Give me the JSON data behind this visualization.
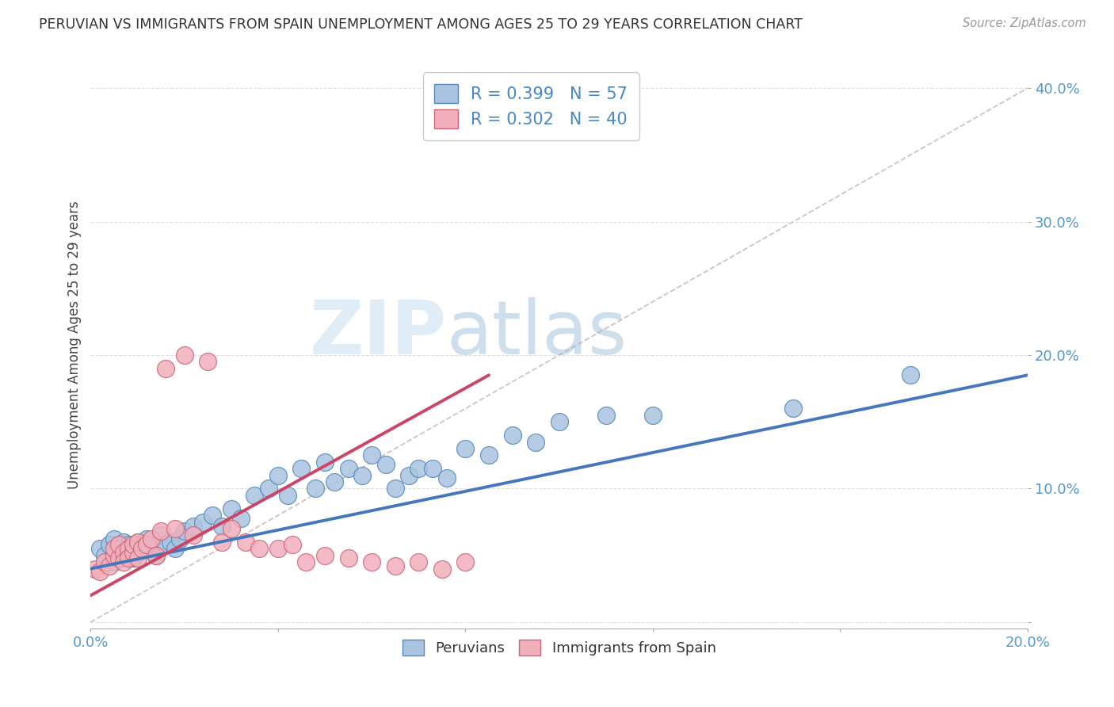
{
  "title": "PERUVIAN VS IMMIGRANTS FROM SPAIN UNEMPLOYMENT AMONG AGES 25 TO 29 YEARS CORRELATION CHART",
  "source_text": "Source: ZipAtlas.com",
  "ylabel": "Unemployment Among Ages 25 to 29 years",
  "xlim": [
    0.0,
    0.2
  ],
  "ylim": [
    -0.005,
    0.42
  ],
  "x_ticks": [
    0.0,
    0.04,
    0.08,
    0.12,
    0.16,
    0.2
  ],
  "y_ticks": [
    0.0,
    0.1,
    0.2,
    0.3,
    0.4
  ],
  "blue_color": "#aac4e0",
  "blue_edge": "#5588bb",
  "pink_color": "#f0b0bc",
  "pink_edge": "#cc6677",
  "trend_blue": "#4477bb",
  "trend_pink": "#cc4466",
  "diag_color": "#ccbbbb",
  "watermark_zip": "ZIP",
  "watermark_atlas": "atlas",
  "bg_color": "#ffffff",
  "grid_color": "#dddddd",
  "peruvians_x": [
    0.002,
    0.003,
    0.004,
    0.005,
    0.005,
    0.006,
    0.006,
    0.007,
    0.007,
    0.008,
    0.008,
    0.009,
    0.009,
    0.01,
    0.01,
    0.011,
    0.012,
    0.013,
    0.014,
    0.015,
    0.016,
    0.017,
    0.018,
    0.019,
    0.02,
    0.022,
    0.024,
    0.026,
    0.028,
    0.03,
    0.032,
    0.035,
    0.038,
    0.04,
    0.042,
    0.045,
    0.048,
    0.05,
    0.052,
    0.055,
    0.058,
    0.06,
    0.063,
    0.065,
    0.068,
    0.07,
    0.073,
    0.076,
    0.08,
    0.085,
    0.09,
    0.095,
    0.1,
    0.11,
    0.12,
    0.15,
    0.175
  ],
  "peruvians_y": [
    0.055,
    0.05,
    0.058,
    0.062,
    0.045,
    0.055,
    0.048,
    0.06,
    0.052,
    0.058,
    0.05,
    0.055,
    0.048,
    0.06,
    0.052,
    0.058,
    0.062,
    0.055,
    0.05,
    0.065,
    0.058,
    0.06,
    0.055,
    0.062,
    0.068,
    0.072,
    0.075,
    0.08,
    0.072,
    0.085,
    0.078,
    0.095,
    0.1,
    0.11,
    0.095,
    0.115,
    0.1,
    0.12,
    0.105,
    0.115,
    0.11,
    0.125,
    0.118,
    0.1,
    0.11,
    0.115,
    0.115,
    0.108,
    0.13,
    0.125,
    0.14,
    0.135,
    0.15,
    0.155,
    0.155,
    0.16,
    0.185
  ],
  "spain_x": [
    0.001,
    0.002,
    0.003,
    0.004,
    0.005,
    0.005,
    0.006,
    0.006,
    0.007,
    0.007,
    0.008,
    0.008,
    0.009,
    0.009,
    0.01,
    0.01,
    0.011,
    0.012,
    0.013,
    0.014,
    0.015,
    0.016,
    0.018,
    0.02,
    0.022,
    0.025,
    0.028,
    0.03,
    0.033,
    0.036,
    0.04,
    0.043,
    0.046,
    0.05,
    0.055,
    0.06,
    0.065,
    0.07,
    0.075,
    0.08
  ],
  "spain_y": [
    0.04,
    0.038,
    0.045,
    0.042,
    0.05,
    0.055,
    0.048,
    0.058,
    0.052,
    0.045,
    0.055,
    0.048,
    0.052,
    0.058,
    0.048,
    0.06,
    0.055,
    0.058,
    0.062,
    0.05,
    0.068,
    0.19,
    0.07,
    0.2,
    0.065,
    0.195,
    0.06,
    0.07,
    0.06,
    0.055,
    0.055,
    0.058,
    0.045,
    0.05,
    0.048,
    0.045,
    0.042,
    0.045,
    0.04,
    0.045
  ],
  "blue_trend_x": [
    0.0,
    0.2
  ],
  "blue_trend_y": [
    0.04,
    0.185
  ],
  "pink_trend_x": [
    0.0,
    0.085
  ],
  "pink_trend_y": [
    0.02,
    0.185
  ]
}
